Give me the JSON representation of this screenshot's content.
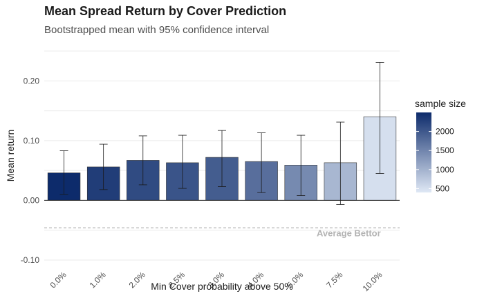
{
  "chart_data": {
    "type": "bar",
    "title": "Mean Spread Return by Cover Prediction",
    "subtitle": "Bootstrapped mean with 95% confidence interval",
    "xlabel": "Min Cover probability above 50%",
    "ylabel": "Mean return",
    "categories": [
      "0.0%",
      "1.0%",
      "2.0%",
      "2.5%",
      "3.0%",
      "4.0%",
      "5.0%",
      "7.5%",
      "10.0%"
    ],
    "values": [
      0.046,
      0.056,
      0.067,
      0.063,
      0.072,
      0.065,
      0.059,
      0.063,
      0.14
    ],
    "ci_lower": [
      0.01,
      0.018,
      0.026,
      0.02,
      0.023,
      0.013,
      0.008,
      -0.007,
      0.045
    ],
    "ci_upper": [
      0.083,
      0.094,
      0.108,
      0.109,
      0.117,
      0.113,
      0.109,
      0.131,
      0.231
    ],
    "sample_size": [
      2500,
      2300,
      2150,
      2050,
      1950,
      1750,
      1450,
      950,
      500
    ],
    "ylim": [
      -0.1,
      0.25
    ],
    "yticks": [
      -0.1,
      0.0,
      0.1,
      0.2
    ],
    "ytick_labels": [
      "-0.10",
      "0.00",
      "0.10",
      "0.20"
    ],
    "reference_line": {
      "value": -0.046,
      "label": "Average Bettor"
    },
    "legend": {
      "title": "sample size",
      "ticks": [
        500,
        1000,
        1500,
        2000
      ],
      "range": [
        400,
        2500
      ],
      "color_low": "#dfe8f5",
      "color_high": "#0d2b6b",
      "placement": "right"
    },
    "grid": true
  }
}
